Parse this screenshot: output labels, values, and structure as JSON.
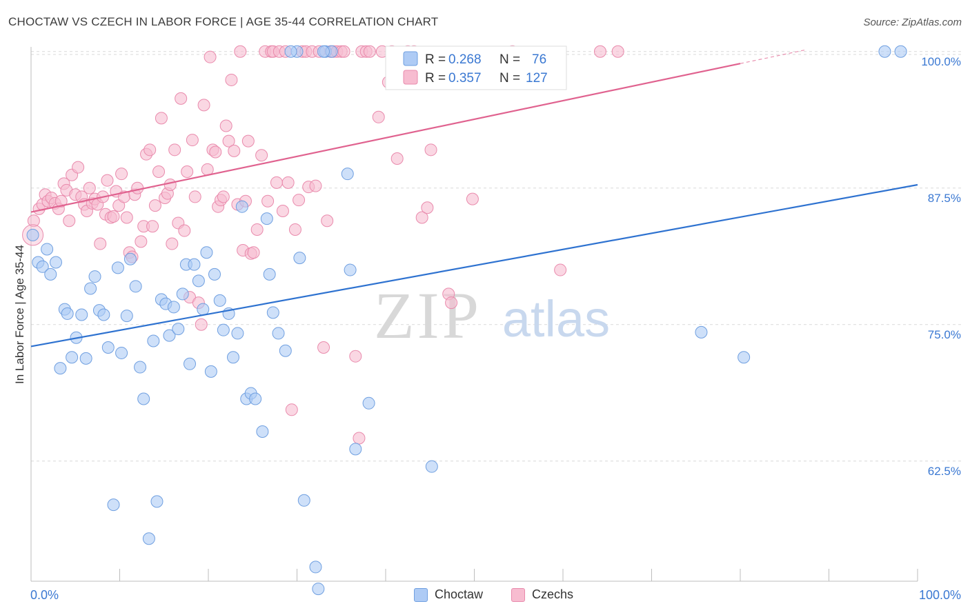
{
  "header": {
    "title": "CHOCTAW VS CZECH IN LABOR FORCE | AGE 35-44 CORRELATION CHART",
    "source": "Source: ZipAtlas.com"
  },
  "watermark": {
    "zip": "ZIP",
    "atlas": "atlas"
  },
  "colors": {
    "choctaw_fill": "#aecbf5",
    "choctaw_stroke": "#6f9fe0",
    "choctaw_line": "#2e72d0",
    "czech_fill": "#f7bcd0",
    "czech_stroke": "#e98aac",
    "czech_line": "#e0628f",
    "value_text": "#3a78d2",
    "grid": "#d9d9d9"
  },
  "legend": {
    "choctaw": {
      "r_label": "R = ",
      "r_value": "0.268",
      "n_label": "N = ",
      "n_value": "76"
    },
    "czech": {
      "r_label": "R = ",
      "r_value": "0.357",
      "n_label": "N = ",
      "n_value": "127"
    }
  },
  "bottom_legend": {
    "choctaw": "Choctaw",
    "czech": "Czechs"
  },
  "chart_data": {
    "type": "scatter",
    "title": "CHOCTAW VS CZECH IN LABOR FORCE | AGE 35-44 CORRELATION CHART",
    "xlabel": "",
    "ylabel": "In Labor Force | Age 35-44",
    "xlim": [
      0,
      100
    ],
    "ylim": [
      51.5,
      101.5
    ],
    "x_tick_labels": [
      {
        "value": 0,
        "label": "0.0%"
      },
      {
        "value": 100,
        "label": "100.0%"
      }
    ],
    "y_tick_labels": [
      {
        "value": 62.5,
        "label": "62.5%"
      },
      {
        "value": 75.0,
        "label": "75.0%"
      },
      {
        "value": 87.5,
        "label": "87.5%"
      },
      {
        "value": 100.0,
        "label": "100.0%"
      }
    ],
    "grid": true,
    "legend_position": "top-center",
    "series": [
      {
        "name": "Choctaw",
        "r": 0.268,
        "n": 76,
        "trend": {
          "x": [
            0,
            100
          ],
          "y": [
            73.0,
            87.8
          ]
        },
        "points": [
          [
            0.2,
            83.2
          ],
          [
            0.8,
            80.7
          ],
          [
            1.3,
            80.3
          ],
          [
            1.8,
            81.9
          ],
          [
            2.2,
            79.6
          ],
          [
            2.8,
            80.7
          ],
          [
            3.3,
            71.0
          ],
          [
            3.8,
            76.4
          ],
          [
            4.1,
            76.0
          ],
          [
            4.6,
            72.0
          ],
          [
            5.1,
            73.8
          ],
          [
            5.7,
            75.9
          ],
          [
            6.2,
            71.9
          ],
          [
            6.7,
            78.3
          ],
          [
            7.2,
            79.4
          ],
          [
            7.7,
            76.3
          ],
          [
            8.2,
            75.9
          ],
          [
            8.7,
            72.9
          ],
          [
            9.3,
            58.5
          ],
          [
            9.8,
            80.2
          ],
          [
            10.2,
            72.4
          ],
          [
            10.8,
            75.8
          ],
          [
            11.2,
            81.0
          ],
          [
            11.8,
            78.5
          ],
          [
            12.3,
            71.1
          ],
          [
            12.7,
            68.2
          ],
          [
            13.3,
            55.4
          ],
          [
            13.8,
            73.5
          ],
          [
            14.2,
            58.8
          ],
          [
            14.7,
            77.3
          ],
          [
            15.2,
            76.9
          ],
          [
            15.6,
            74.0
          ],
          [
            16.1,
            76.6
          ],
          [
            16.6,
            74.6
          ],
          [
            17.1,
            77.8
          ],
          [
            17.5,
            80.5
          ],
          [
            17.9,
            71.4
          ],
          [
            18.4,
            80.5
          ],
          [
            18.9,
            79.0
          ],
          [
            19.4,
            76.4
          ],
          [
            19.8,
            81.6
          ],
          [
            20.3,
            70.7
          ],
          [
            20.7,
            79.6
          ],
          [
            21.3,
            77.2
          ],
          [
            21.7,
            74.5
          ],
          [
            22.3,
            76.0
          ],
          [
            22.8,
            72.0
          ],
          [
            23.3,
            74.2
          ],
          [
            23.8,
            85.8
          ],
          [
            24.3,
            68.2
          ],
          [
            24.8,
            68.7
          ],
          [
            25.3,
            68.2
          ],
          [
            26.1,
            65.2
          ],
          [
            26.6,
            84.7
          ],
          [
            26.9,
            79.6
          ],
          [
            27.3,
            76.1
          ],
          [
            27.9,
            74.2
          ],
          [
            28.7,
            72.6
          ],
          [
            30.0,
            100.0
          ],
          [
            30.3,
            81.1
          ],
          [
            30.8,
            58.9
          ],
          [
            32.1,
            52.8
          ],
          [
            32.4,
            50.8
          ],
          [
            33.2,
            100.0
          ],
          [
            35.7,
            88.8
          ],
          [
            36.0,
            80.0
          ],
          [
            36.6,
            63.6
          ],
          [
            38.1,
            67.8
          ],
          [
            45.2,
            62.0
          ],
          [
            75.6,
            74.3
          ],
          [
            80.4,
            72.0
          ],
          [
            96.3,
            100.0
          ],
          [
            98.1,
            100.0
          ],
          [
            29.3,
            100.0
          ],
          [
            33.9,
            100.0
          ],
          [
            33.0,
            100.0
          ]
        ]
      },
      {
        "name": "Czechs",
        "r": 0.357,
        "n": 127,
        "trend": {
          "x": [
            0,
            80
          ],
          "y": [
            85.3,
            98.9
          ]
        },
        "points": [
          [
            0.3,
            84.5
          ],
          [
            0.9,
            85.6
          ],
          [
            1.3,
            86.0
          ],
          [
            1.6,
            86.9
          ],
          [
            1.9,
            86.3
          ],
          [
            2.3,
            86.6
          ],
          [
            2.7,
            86.1
          ],
          [
            3.1,
            85.6
          ],
          [
            3.4,
            86.3
          ],
          [
            3.7,
            87.9
          ],
          [
            4.0,
            87.3
          ],
          [
            4.3,
            84.5
          ],
          [
            4.6,
            88.7
          ],
          [
            5.0,
            86.9
          ],
          [
            5.3,
            89.4
          ],
          [
            5.7,
            86.7
          ],
          [
            6.0,
            86.0
          ],
          [
            6.3,
            85.4
          ],
          [
            6.6,
            87.5
          ],
          [
            6.9,
            86.1
          ],
          [
            7.2,
            86.5
          ],
          [
            7.5,
            86.0
          ],
          [
            7.8,
            82.4
          ],
          [
            8.1,
            86.7
          ],
          [
            8.4,
            85.1
          ],
          [
            8.6,
            88.2
          ],
          [
            9.0,
            84.8
          ],
          [
            9.3,
            84.9
          ],
          [
            9.6,
            87.2
          ],
          [
            9.9,
            85.9
          ],
          [
            10.2,
            88.8
          ],
          [
            10.5,
            86.7
          ],
          [
            10.8,
            84.8
          ],
          [
            11.1,
            81.6
          ],
          [
            11.4,
            81.2
          ],
          [
            11.7,
            86.9
          ],
          [
            12.0,
            87.5
          ],
          [
            12.4,
            82.6
          ],
          [
            12.7,
            84.0
          ],
          [
            13.0,
            90.6
          ],
          [
            13.4,
            91.0
          ],
          [
            13.7,
            84.0
          ],
          [
            14.0,
            85.9
          ],
          [
            14.4,
            89.0
          ],
          [
            14.7,
            93.9
          ],
          [
            15.1,
            86.6
          ],
          [
            15.4,
            87.0
          ],
          [
            15.7,
            87.8
          ],
          [
            15.9,
            82.4
          ],
          [
            16.2,
            91.0
          ],
          [
            16.6,
            84.3
          ],
          [
            16.9,
            95.7
          ],
          [
            17.3,
            83.6
          ],
          [
            17.6,
            89.0
          ],
          [
            17.9,
            77.5
          ],
          [
            18.2,
            91.9
          ],
          [
            18.5,
            86.7
          ],
          [
            18.9,
            77.0
          ],
          [
            19.2,
            75.0
          ],
          [
            19.5,
            95.1
          ],
          [
            19.9,
            89.2
          ],
          [
            20.2,
            99.5
          ],
          [
            20.5,
            91.0
          ],
          [
            20.8,
            90.8
          ],
          [
            21.1,
            85.8
          ],
          [
            21.4,
            86.4
          ],
          [
            21.7,
            86.7
          ],
          [
            22.0,
            93.2
          ],
          [
            22.3,
            91.8
          ],
          [
            22.6,
            97.4
          ],
          [
            22.9,
            90.9
          ],
          [
            23.3,
            86.0
          ],
          [
            23.6,
            100.0
          ],
          [
            23.9,
            81.8
          ],
          [
            24.2,
            86.3
          ],
          [
            24.5,
            91.8
          ],
          [
            24.8,
            81.5
          ],
          [
            25.1,
            81.6
          ],
          [
            25.5,
            83.7
          ],
          [
            26.0,
            90.5
          ],
          [
            26.4,
            100.0
          ],
          [
            26.7,
            86.3
          ],
          [
            27.1,
            100.0
          ],
          [
            27.3,
            100.0
          ],
          [
            27.7,
            88.0
          ],
          [
            28.0,
            100.0
          ],
          [
            28.4,
            85.4
          ],
          [
            28.7,
            100.0
          ],
          [
            29.0,
            88.0
          ],
          [
            29.4,
            67.2
          ],
          [
            29.8,
            83.7
          ],
          [
            30.2,
            86.4
          ],
          [
            30.6,
            100.0
          ],
          [
            31.0,
            100.0
          ],
          [
            31.3,
            87.6
          ],
          [
            31.7,
            100.0
          ],
          [
            32.1,
            87.7
          ],
          [
            32.5,
            100.0
          ],
          [
            33.0,
            72.9
          ],
          [
            33.4,
            84.5
          ],
          [
            33.8,
            100.0
          ],
          [
            34.1,
            100.0
          ],
          [
            34.5,
            100.0
          ],
          [
            35.0,
            100.0
          ],
          [
            35.3,
            100.0
          ],
          [
            36.6,
            72.1
          ],
          [
            37.0,
            64.6
          ],
          [
            37.3,
            100.0
          ],
          [
            37.8,
            100.0
          ],
          [
            38.2,
            100.0
          ],
          [
            39.2,
            94.0
          ],
          [
            39.6,
            100.0
          ],
          [
            40.3,
            97.2
          ],
          [
            40.7,
            100.0
          ],
          [
            41.3,
            90.2
          ],
          [
            42.5,
            100.0
          ],
          [
            43.2,
            100.0
          ],
          [
            44.1,
            84.8
          ],
          [
            44.7,
            85.7
          ],
          [
            45.1,
            91.0
          ],
          [
            47.1,
            77.8
          ],
          [
            47.4,
            77.0
          ],
          [
            49.8,
            86.5
          ],
          [
            54.3,
            100.0
          ],
          [
            59.7,
            80.0
          ],
          [
            64.2,
            100.0
          ],
          [
            66.2,
            100.0
          ]
        ]
      }
    ]
  }
}
